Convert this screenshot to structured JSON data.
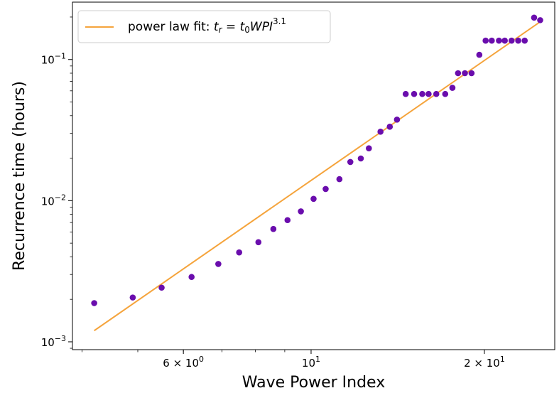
{
  "chart_data": {
    "type": "scatter",
    "xscale": "log",
    "yscale": "log",
    "xlabel": "Wave Power Index",
    "ylabel": "Recurrence time (hours)",
    "xlim": [
      3.85,
      26.5
    ],
    "ylim": [
      0.00088,
      0.255
    ],
    "x_ticks": [
      {
        "value": 6,
        "base": "6 × 10",
        "exp": "0"
      },
      {
        "value": 10,
        "base": "10",
        "exp": "1"
      },
      {
        "value": 20,
        "base": "2 × 10",
        "exp": "1"
      }
    ],
    "y_ticks": [
      {
        "value": 0.001,
        "base": "10",
        "exp": "−3"
      },
      {
        "value": 0.01,
        "base": "10",
        "exp": "−2"
      },
      {
        "value": 0.1,
        "base": "10",
        "exp": "−1"
      }
    ],
    "legend": {
      "position": "upper-left",
      "label_prefix": "power law fit: ",
      "label_formula": {
        "t": "t",
        "r": "r",
        "eq": " = ",
        "t0": "t",
        "zero": "0",
        "wpi": "WPI",
        "power": "3.1"
      }
    },
    "colors": {
      "points": "#6a0dad",
      "fit": "#f5a43c",
      "axes": "#000000"
    },
    "fit": {
      "name": "power law fit",
      "exponent": 3.1,
      "x": [
        4.2,
        25.0
      ],
      "y": [
        0.0012,
        0.185
      ]
    },
    "series": [
      {
        "name": "",
        "x": [
          4.2,
          4.9,
          5.5,
          6.2,
          6.9,
          7.5,
          8.1,
          8.6,
          9.1,
          9.6,
          10.1,
          10.6,
          11.2,
          11.7,
          12.2,
          12.6,
          13.2,
          13.7,
          14.1,
          14.6,
          15.1,
          15.6,
          16.0,
          16.5,
          17.1,
          17.6,
          18.0,
          18.5,
          19.0,
          19.6,
          20.1,
          20.6,
          21.2,
          21.7,
          22.3,
          22.9,
          23.5,
          24.4,
          25.0
        ],
        "y": [
          0.00188,
          0.00206,
          0.00242,
          0.00288,
          0.00356,
          0.0043,
          0.00508,
          0.0063,
          0.00728,
          0.0084,
          0.0103,
          0.0121,
          0.0142,
          0.0188,
          0.0199,
          0.0235,
          0.0308,
          0.0334,
          0.0375,
          0.057,
          0.057,
          0.057,
          0.057,
          0.057,
          0.057,
          0.063,
          0.08,
          0.08,
          0.08,
          0.108,
          0.136,
          0.136,
          0.136,
          0.136,
          0.136,
          0.136,
          0.136,
          0.198,
          0.19
        ]
      }
    ]
  }
}
